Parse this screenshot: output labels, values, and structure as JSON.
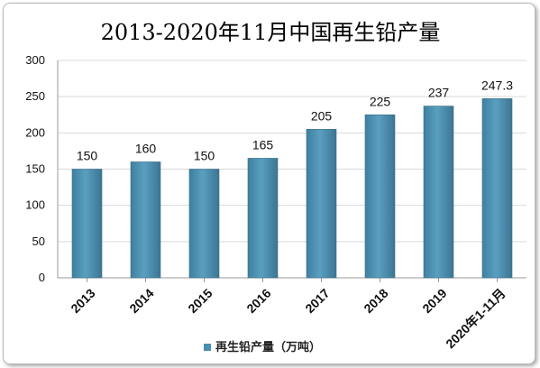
{
  "chart_data": {
    "type": "bar",
    "title": "2013-2020年11月中国再生铅产量",
    "categories": [
      "2013",
      "2014",
      "2015",
      "2016",
      "2017",
      "2018",
      "2019",
      "2020年1-11月"
    ],
    "series": [
      {
        "name": "再生铅产量（万吨）",
        "values": [
          150,
          160,
          150,
          165,
          205,
          225,
          237,
          247.3
        ],
        "data_labels": [
          "150",
          "160",
          "150",
          "165",
          "205",
          "225",
          "237",
          "247.3"
        ]
      }
    ],
    "ylim": [
      0,
      300
    ],
    "yticks": [
      "0",
      "50",
      "100",
      "150",
      "200",
      "250",
      "300"
    ],
    "grid": true,
    "legend": "bottom",
    "bar_color": "#4b8fb0"
  }
}
